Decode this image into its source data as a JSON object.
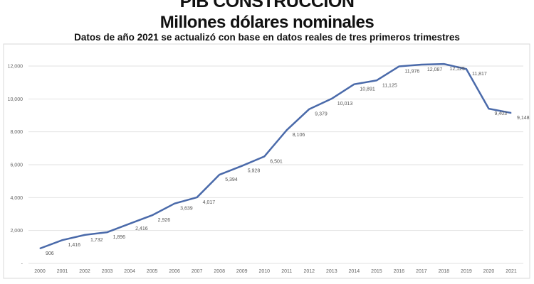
{
  "chart_data": {
    "type": "line",
    "title": "PIB CONSTRUCCIÓN",
    "subtitle": "Millones dólares nominales",
    "note": "Datos de año 2021 se actualizó con base en datos reales de tres primeros trimestres",
    "xlabel": "",
    "ylabel": "",
    "categories": [
      "2000",
      "2001",
      "2002",
      "2003",
      "2004",
      "2005",
      "2006",
      "2007",
      "2008",
      "2009",
      "2010",
      "2011",
      "2012",
      "2013",
      "2014",
      "2015",
      "2016",
      "2017",
      "2018",
      "2019",
      "2020",
      "2021"
    ],
    "values": [
      906,
      1416,
      1732,
      1896,
      2416,
      2926,
      3639,
      4017,
      5394,
      5928,
      6501,
      8106,
      9379,
      10013,
      10891,
      11125,
      11976,
      12087,
      12125,
      11817,
      9403,
      9148
    ],
    "data_labels": [
      "906",
      "1,416",
      "1,732",
      "1,896",
      "2,416",
      "2,926",
      "3,639",
      "4,017",
      "5,394",
      "5,928",
      "6,501",
      "8,106",
      "9,379",
      "10,013",
      "10,891",
      "11,125",
      "11,976",
      "12,087",
      "12,125",
      "11,817",
      "9,403",
      "9,148"
    ],
    "yticks": [
      0,
      2000,
      4000,
      6000,
      8000,
      10000,
      12000
    ],
    "ytick_labels": [
      "-",
      "2,000",
      "4,000",
      "6,000",
      "8,000",
      "10,000",
      "12,000"
    ],
    "ylim": [
      0,
      12000
    ],
    "grid": true,
    "legend": "none",
    "line_color": "#4a6aaa",
    "grid_color": "#e2e2e2"
  }
}
